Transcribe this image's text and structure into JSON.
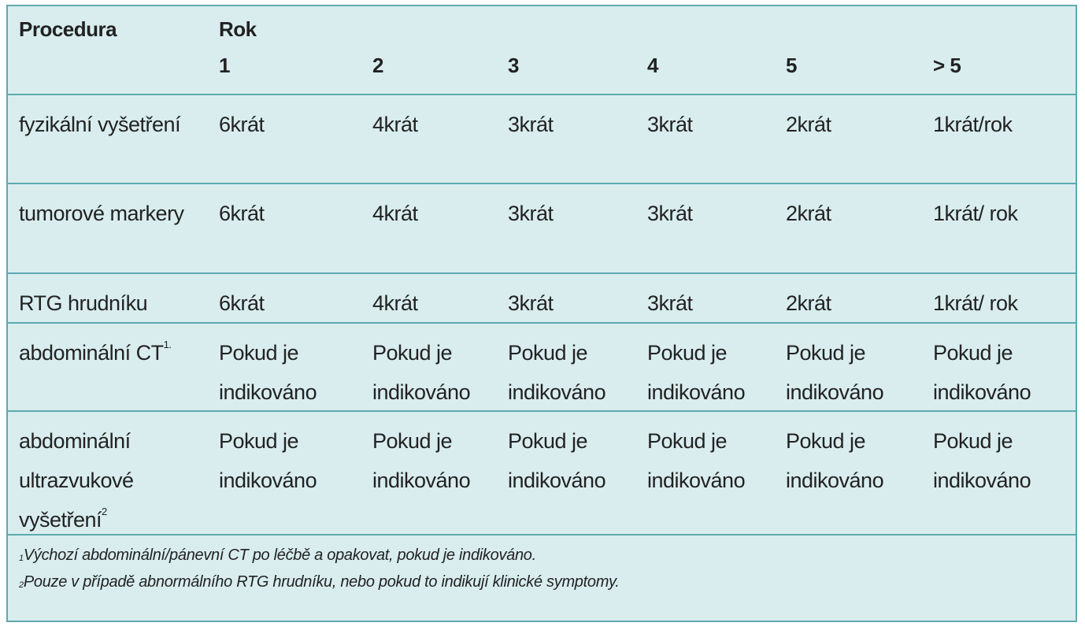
{
  "header": {
    "procedure": "Procedura",
    "year": "Rok",
    "years": [
      "1",
      "2",
      "3",
      "4",
      "5",
      "> 5"
    ]
  },
  "rows": [
    {
      "label": "fyzikální vyšetření",
      "cells": [
        "6krát",
        "4krát",
        "3krát",
        "3krát",
        "2krát",
        "1krát/rok"
      ]
    },
    {
      "label": "tumorové markery",
      "cells": [
        "6krát",
        "4krát",
        "3krát",
        "3krát",
        "2krát",
        "1krát/ rok"
      ]
    },
    {
      "label": "RTG hrudníku",
      "cells": [
        "6krát",
        "4krát",
        "3krát",
        "3krát",
        "2krát",
        "1krát/ rok"
      ]
    },
    {
      "label": "abdominální CT",
      "sup": "1.",
      "cells": [
        "Pokud je indikováno",
        "Pokud je indikováno",
        "Pokud je indikováno",
        "Pokud je indikováno",
        "Pokud je indikováno",
        "Pokud je indikováno"
      ]
    },
    {
      "label": "abdominální ultrazvukové vyšetření",
      "sup": "2",
      "cells": [
        "Pokud je indikováno",
        "Pokud je indikováno",
        "Pokud je indikováno",
        "Pokud je indikováno",
        "Pokud je indikováno",
        "Pokud je indikováno"
      ]
    }
  ],
  "footnotes": [
    {
      "mark": "1",
      "text": "Výchozí abdominální/pánevní CT po léčbě a opakovat, pokud je indikováno."
    },
    {
      "mark": "2",
      "text": "Pouze v případě abnormálního RTG hrudníku, nebo pokud to indikují klinické symptomy."
    }
  ]
}
